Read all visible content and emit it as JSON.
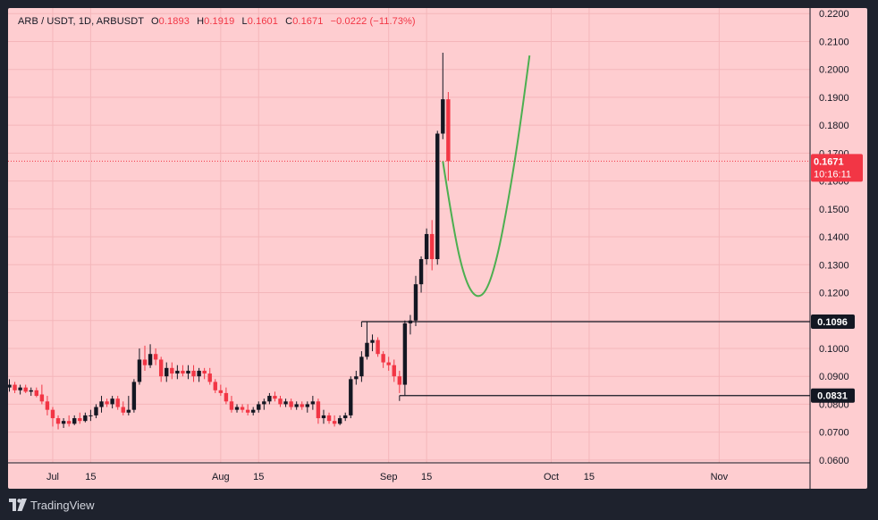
{
  "header": {
    "symbol": "ARB / USDT, 1D, ARBUSDT",
    "open_label": "O",
    "open": "0.1893",
    "high_label": "H",
    "high": "0.1919",
    "low_label": "L",
    "low": "0.1601",
    "close_label": "C",
    "close": "0.1671",
    "change": "−0.0222 (−11.73%)"
  },
  "footer": {
    "brand": "TradingView",
    "logo_icon": "tradingview-logo-icon"
  },
  "colors": {
    "background": "#fecdd0",
    "up": "#131722",
    "down": "#f23645",
    "projection": "#4caf50",
    "level_line": "#131722",
    "price_badge": "#f23645"
  },
  "chart_data": {
    "type": "candlestick",
    "title": "ARB / USDT, 1D, ARBUSDT",
    "ylim": [
      0.059,
      0.222
    ],
    "y_ticks": [
      "0.0600",
      "0.0700",
      "0.0800",
      "0.0900",
      "0.1000",
      "0.1100",
      "0.1200",
      "0.1300",
      "0.1400",
      "0.1500",
      "0.1600",
      "0.1700",
      "0.1800",
      "0.1900",
      "0.2000",
      "0.2100",
      "0.2200"
    ],
    "x_ticks": [
      {
        "label": "Jul",
        "day": 8
      },
      {
        "label": "15",
        "day": 15
      },
      {
        "label": "Aug",
        "day": 39
      },
      {
        "label": "15",
        "day": 46
      },
      {
        "label": "Sep",
        "day": 70
      },
      {
        "label": "15",
        "day": 77
      },
      {
        "label": "Oct",
        "day": 100
      },
      {
        "label": "15",
        "day": 107
      },
      {
        "label": "Nov",
        "day": 131
      }
    ],
    "candles": [
      [
        0.086,
        0.089,
        0.0845,
        0.087
      ],
      [
        0.087,
        0.088,
        0.084,
        0.085
      ],
      [
        0.085,
        0.087,
        0.0835,
        0.086
      ],
      [
        0.086,
        0.087,
        0.084,
        0.0845
      ],
      [
        0.0845,
        0.086,
        0.083,
        0.085
      ],
      [
        0.085,
        0.086,
        0.0825,
        0.083
      ],
      [
        0.0835,
        0.087,
        0.08,
        0.081
      ],
      [
        0.081,
        0.083,
        0.076,
        0.078
      ],
      [
        0.078,
        0.079,
        0.072,
        0.075
      ],
      [
        0.075,
        0.076,
        0.071,
        0.073
      ],
      [
        0.073,
        0.075,
        0.0715,
        0.074
      ],
      [
        0.074,
        0.076,
        0.072,
        0.073
      ],
      [
        0.073,
        0.076,
        0.0725,
        0.075
      ],
      [
        0.075,
        0.077,
        0.073,
        0.074
      ],
      [
        0.074,
        0.077,
        0.0735,
        0.076
      ],
      [
        0.076,
        0.078,
        0.074,
        0.076
      ],
      [
        0.076,
        0.08,
        0.075,
        0.079
      ],
      [
        0.079,
        0.083,
        0.077,
        0.081
      ],
      [
        0.081,
        0.082,
        0.079,
        0.08
      ],
      [
        0.08,
        0.083,
        0.0785,
        0.082
      ],
      [
        0.082,
        0.083,
        0.078,
        0.079
      ],
      [
        0.079,
        0.081,
        0.076,
        0.077
      ],
      [
        0.077,
        0.083,
        0.076,
        0.078
      ],
      [
        0.078,
        0.089,
        0.077,
        0.088
      ],
      [
        0.088,
        0.1,
        0.087,
        0.096
      ],
      [
        0.096,
        0.101,
        0.092,
        0.094
      ],
      [
        0.094,
        0.1015,
        0.093,
        0.098
      ],
      [
        0.098,
        0.1,
        0.094,
        0.096
      ],
      [
        0.096,
        0.097,
        0.088,
        0.09
      ],
      [
        0.09,
        0.095,
        0.088,
        0.093
      ],
      [
        0.093,
        0.095,
        0.089,
        0.091
      ],
      [
        0.091,
        0.094,
        0.089,
        0.092
      ],
      [
        0.092,
        0.094,
        0.09,
        0.091
      ],
      [
        0.091,
        0.094,
        0.089,
        0.092
      ],
      [
        0.092,
        0.094,
        0.088,
        0.09
      ],
      [
        0.09,
        0.093,
        0.088,
        0.092
      ],
      [
        0.092,
        0.093,
        0.089,
        0.091
      ],
      [
        0.091,
        0.093,
        0.087,
        0.088
      ],
      [
        0.088,
        0.089,
        0.084,
        0.085
      ],
      [
        0.085,
        0.087,
        0.083,
        0.084
      ],
      [
        0.084,
        0.086,
        0.08,
        0.081
      ],
      [
        0.081,
        0.083,
        0.077,
        0.078
      ],
      [
        0.078,
        0.08,
        0.077,
        0.079
      ],
      [
        0.079,
        0.08,
        0.077,
        0.078
      ],
      [
        0.078,
        0.08,
        0.076,
        0.077
      ],
      [
        0.077,
        0.079,
        0.076,
        0.078
      ],
      [
        0.078,
        0.081,
        0.077,
        0.08
      ],
      [
        0.08,
        0.082,
        0.078,
        0.081
      ],
      [
        0.081,
        0.084,
        0.08,
        0.083
      ],
      [
        0.083,
        0.0845,
        0.081,
        0.082
      ],
      [
        0.082,
        0.083,
        0.079,
        0.08
      ],
      [
        0.08,
        0.082,
        0.079,
        0.081
      ],
      [
        0.081,
        0.082,
        0.078,
        0.079
      ],
      [
        0.079,
        0.081,
        0.078,
        0.08
      ],
      [
        0.08,
        0.081,
        0.078,
        0.079
      ],
      [
        0.079,
        0.081,
        0.077,
        0.08
      ],
      [
        0.08,
        0.083,
        0.078,
        0.081
      ],
      [
        0.081,
        0.082,
        0.073,
        0.075
      ],
      [
        0.075,
        0.078,
        0.073,
        0.076
      ],
      [
        0.076,
        0.077,
        0.073,
        0.074
      ],
      [
        0.074,
        0.076,
        0.072,
        0.073
      ],
      [
        0.073,
        0.076,
        0.0725,
        0.075
      ],
      [
        0.075,
        0.077,
        0.074,
        0.076
      ],
      [
        0.076,
        0.09,
        0.075,
        0.089
      ],
      [
        0.089,
        0.092,
        0.087,
        0.09
      ],
      [
        0.09,
        0.099,
        0.088,
        0.097
      ],
      [
        0.097,
        0.1096,
        0.096,
        0.102
      ],
      [
        0.102,
        0.105,
        0.099,
        0.103
      ],
      [
        0.103,
        0.104,
        0.097,
        0.098
      ],
      [
        0.098,
        0.099,
        0.093,
        0.095
      ],
      [
        0.095,
        0.097,
        0.092,
        0.094
      ],
      [
        0.094,
        0.096,
        0.088,
        0.09
      ],
      [
        0.09,
        0.092,
        0.084,
        0.087
      ],
      [
        0.087,
        0.11,
        0.0831,
        0.109
      ],
      [
        0.109,
        0.112,
        0.105,
        0.11
      ],
      [
        0.11,
        0.126,
        0.108,
        0.123
      ],
      [
        0.123,
        0.133,
        0.12,
        0.132
      ],
      [
        0.132,
        0.143,
        0.13,
        0.141
      ],
      [
        0.141,
        0.146,
        0.128,
        0.132
      ],
      [
        0.132,
        0.178,
        0.13,
        0.177
      ],
      [
        0.177,
        0.206,
        0.175,
        0.1893
      ],
      [
        0.1893,
        0.1919,
        0.1601,
        0.1671
      ]
    ],
    "projection": [
      [
        80,
        0.1671
      ],
      [
        82,
        0.142
      ],
      [
        84,
        0.125
      ],
      [
        86,
        0.118
      ],
      [
        88,
        0.12
      ],
      [
        90,
        0.132
      ],
      [
        92,
        0.152
      ],
      [
        94,
        0.176
      ],
      [
        96,
        0.205
      ]
    ],
    "levels": [
      {
        "price": 0.1096,
        "label": "0.1096",
        "from_day": 65
      },
      {
        "price": 0.0831,
        "label": "0.0831",
        "from_day": 72
      }
    ],
    "last_price": {
      "price": 0.1671,
      "label": "0.1671",
      "countdown": "10:16:11"
    }
  }
}
